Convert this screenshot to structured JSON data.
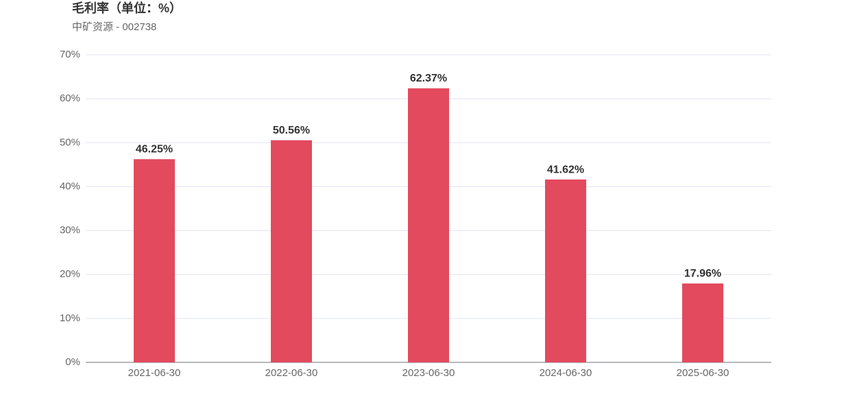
{
  "chart_data": {
    "type": "bar",
    "title": "毛利率（单位：%）",
    "subtitle": "中矿资源 - 002738",
    "categories": [
      "2021-06-30",
      "2022-06-30",
      "2023-06-30",
      "2024-06-30",
      "2025-06-30"
    ],
    "values": [
      46.25,
      50.56,
      62.37,
      41.62,
      17.96
    ],
    "value_labels": [
      "46.25%",
      "50.56%",
      "62.37%",
      "41.62%",
      "17.96%"
    ],
    "color": "#e34a5e",
    "ylim": [
      0,
      70
    ],
    "yticks": [
      {
        "value": 0,
        "label": "0%"
      },
      {
        "value": 10,
        "label": "10%"
      },
      {
        "value": 20,
        "label": "20%"
      },
      {
        "value": 30,
        "label": "30%"
      },
      {
        "value": 40,
        "label": "40%"
      },
      {
        "value": 50,
        "label": "50%"
      },
      {
        "value": 60,
        "label": "60%"
      },
      {
        "value": 70,
        "label": "70%"
      }
    ],
    "grid": true
  }
}
